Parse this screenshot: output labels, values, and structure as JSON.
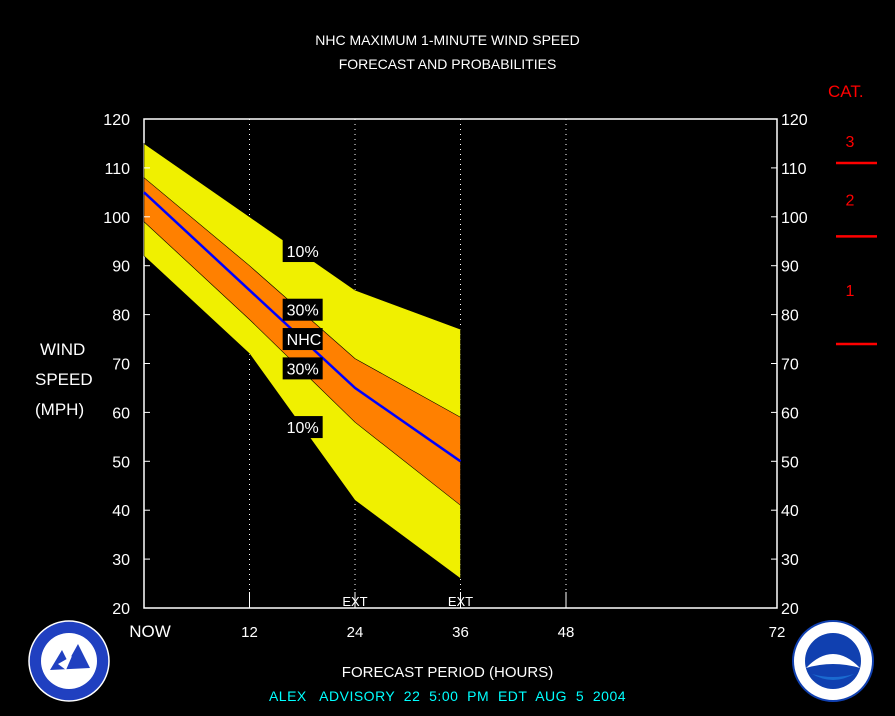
{
  "title_line1": "NHC MAXIMUM 1-MINUTE WIND SPEED",
  "title_line2": "FORECAST AND PROBABILITIES",
  "y_axis_label": [
    "WIND",
    "SPEED",
    "(MPH)"
  ],
  "x_axis_label": "FORECAST PERIOD (HOURS)",
  "advisory": "ALEX   ADVISORY  22  5:00  PM  EDT  AUG  5  2004",
  "category_header": "CAT.",
  "categories": [
    {
      "label": "3",
      "threshold": 111
    },
    {
      "label": "2",
      "threshold": 96
    },
    {
      "label": "1",
      "threshold": 74
    }
  ],
  "logos": {
    "left": "National Weather Service",
    "right": "NOAA"
  },
  "colors": {
    "band10": "#f0f000",
    "band30": "#ff8000",
    "nhc_line": "#0000ff",
    "category": "#ff0000",
    "advisory": "#00ffff"
  },
  "chart_data": {
    "type": "area",
    "xlabel": "FORECAST PERIOD (HOURS)",
    "ylabel": "WIND SPEED (MPH)",
    "xlim": [
      0,
      72
    ],
    "ylim": [
      20,
      120
    ],
    "x_ticks": [
      0,
      12,
      24,
      36,
      48,
      72
    ],
    "x_tick_labels": [
      "NOW",
      "12",
      "24",
      "36",
      "48",
      "72"
    ],
    "y_ticks": [
      20,
      30,
      40,
      50,
      60,
      70,
      80,
      90,
      100,
      110,
      120
    ],
    "ext_markers": [
      {
        "x": 24,
        "label": "EXT"
      },
      {
        "x": 36,
        "label": "EXT"
      }
    ],
    "x": [
      0,
      12,
      24,
      36
    ],
    "series": [
      {
        "name": "10%",
        "upper": [
          115,
          100,
          85,
          77
        ],
        "lower": [
          92,
          72,
          42,
          26
        ]
      },
      {
        "name": "30%",
        "upper": [
          108,
          90,
          71,
          59
        ],
        "lower": [
          99,
          79,
          58,
          41
        ]
      },
      {
        "name": "NHC",
        "values": [
          105,
          85,
          65,
          50
        ]
      }
    ],
    "annotations": [
      {
        "text": "10%",
        "x": 16,
        "y": 93
      },
      {
        "text": "30%",
        "x": 16,
        "y": 81
      },
      {
        "text": "NHC",
        "x": 16,
        "y": 75
      },
      {
        "text": "30%",
        "x": 16,
        "y": 69
      },
      {
        "text": "10%",
        "x": 16,
        "y": 57
      }
    ]
  }
}
